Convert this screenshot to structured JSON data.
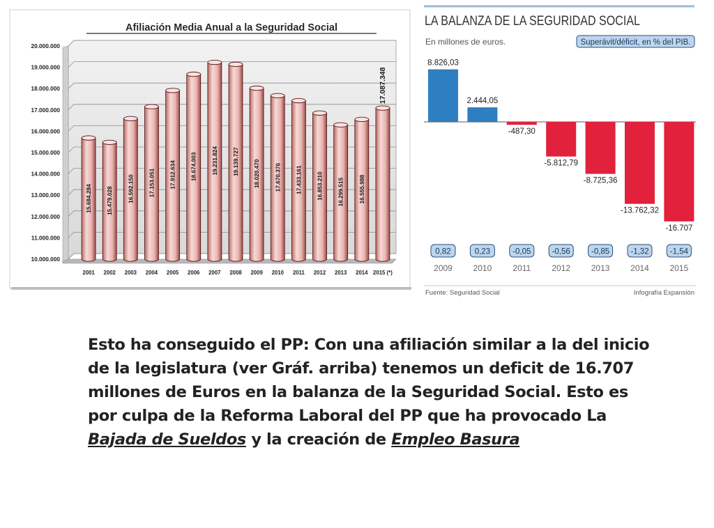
{
  "chart_data": [
    {
      "type": "bar",
      "title": "Afiliación Media Anual a la Seguridad Social",
      "categories": [
        "2001",
        "2002",
        "2003",
        "2004",
        "2005",
        "2006",
        "2007",
        "2008",
        "2009",
        "2010",
        "2011",
        "2012",
        "2013",
        "2014",
        "2015 (*)"
      ],
      "values": [
        15684284,
        15479028,
        16592150,
        17153051,
        17912634,
        18674003,
        19231824,
        19139727,
        18020470,
        17670376,
        17433161,
        16853210,
        16299515,
        16555988,
        17087348
      ],
      "value_labels": [
        "15.684.284",
        "15.479.028",
        "16.592.150",
        "17.153.051",
        "17.912.634",
        "18.674.003",
        "19.231.824",
        "19.139.727",
        "18.020.470",
        "17.670.376",
        "17.433.161",
        "16.853.210",
        "16.299.515",
        "16.555.988",
        "17.087.348"
      ],
      "ylim": [
        10000000,
        20000000
      ],
      "yticks": [
        10000000,
        11000000,
        12000000,
        13000000,
        14000000,
        15000000,
        16000000,
        17000000,
        18000000,
        19000000,
        20000000
      ],
      "ytick_labels": [
        "10.000.000",
        "11.000.000",
        "12.000.000",
        "13.000.000",
        "14.000.000",
        "15.000.000",
        "16.000.000",
        "17.000.000",
        "18.000.000",
        "19.000.000",
        "20.000.000"
      ],
      "xlabel": "",
      "ylabel": "",
      "colors": {
        "bar": "#e9b4b1",
        "bar_edge": "#5a1717",
        "title": "#2a2a2a"
      }
    },
    {
      "type": "bar",
      "title": "LA BALANZA DE LA SEGURIDAD SOCIAL",
      "subtitle": "En millones de euros.",
      "pib_label": "Superávit/déficit, en % del PIB.",
      "categories": [
        "2009",
        "2010",
        "2011",
        "2012",
        "2013",
        "2014",
        "2015"
      ],
      "values": [
        8826.03,
        2444.05,
        -487.3,
        -5812.79,
        -8725.36,
        -13762.32,
        -16707
      ],
      "value_labels": [
        "8.826,03",
        "2.444,05",
        "-487,30",
        "-5.812,79",
        "-8.725,36",
        "-13.762,32",
        "-16.707"
      ],
      "pib_values": [
        "0,82",
        "0,23",
        "-0,05",
        "-0,56",
        "-0,85",
        "-1,32",
        "-1,54"
      ],
      "source": "Fuente: Seguridad Social",
      "credit": "Infografía Expansión",
      "colors": {
        "positive": "#2e7fc1",
        "negative": "#e2213d",
        "badge_bg": "#bcd6ee",
        "rule": "#9dbad8"
      }
    }
  ],
  "caption": {
    "text": "Esto ha conseguido el PP: Con una afiliación similar a la del inicio de la legislatura (ver Gráf. arriba) tenemos un deficit de 16.707 millones de Euros en la balanza de la Seguridad Social. Esto es por culpa de la Reforma Laboral del PP que ha provocado La ",
    "em1": "Bajada de Sueldos",
    "mid": " y la creación de ",
    "em2": "Empleo Basura"
  }
}
